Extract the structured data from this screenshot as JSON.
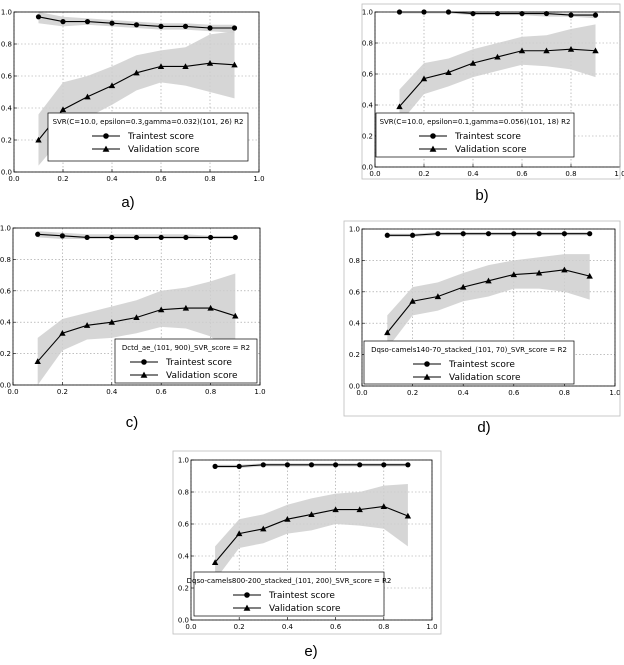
{
  "chart_data": [
    {
      "type": "line",
      "panel_label": "a)",
      "legend_title": "SVR(C=10.0, epsilon=0.3,gamma=0.032)(101, 26) R2",
      "legend_placement": "lower-right",
      "grid": true,
      "xlim": [
        0.0,
        1.0
      ],
      "ylim": [
        0.0,
        1.0
      ],
      "xticks": [
        "0.0",
        "0.2",
        "0.4",
        "0.6",
        "0.8",
        "1.0"
      ],
      "yticks": [
        "0.0",
        "0.2",
        "0.4",
        "0.6",
        "0.8",
        "1.0"
      ],
      "x": [
        0.1,
        0.2,
        0.3,
        0.4,
        0.5,
        0.6,
        0.7,
        0.8,
        0.9
      ],
      "series": [
        {
          "name": "Traintest score",
          "marker": "circle",
          "values": [
            0.97,
            0.94,
            0.94,
            0.93,
            0.92,
            0.91,
            0.91,
            0.9,
            0.9
          ],
          "band": [
            [
              0.93,
              1.0
            ],
            [
              0.91,
              0.97
            ],
            [
              0.92,
              0.96
            ],
            [
              0.91,
              0.95
            ],
            [
              0.9,
              0.94
            ],
            [
              0.89,
              0.93
            ],
            [
              0.89,
              0.93
            ],
            [
              0.88,
              0.92
            ],
            [
              0.87,
              0.92
            ]
          ]
        },
        {
          "name": "Validation score",
          "marker": "triangle",
          "values": [
            0.2,
            0.39,
            0.47,
            0.54,
            0.62,
            0.66,
            0.66,
            0.68,
            0.67
          ],
          "band": [
            [
              0.04,
              0.36
            ],
            [
              0.22,
              0.56
            ],
            [
              0.34,
              0.6
            ],
            [
              0.42,
              0.66
            ],
            [
              0.51,
              0.73
            ],
            [
              0.56,
              0.76
            ],
            [
              0.54,
              0.78
            ],
            [
              0.5,
              0.86
            ],
            [
              0.46,
              0.88
            ]
          ]
        }
      ]
    },
    {
      "type": "line",
      "panel_label": "b)",
      "legend_title": "SVR(C=10.0, epsilon=0.1,gamma=0.056)(101, 18) R2",
      "legend_placement": "lower-right",
      "grid": true,
      "xlim": [
        0.0,
        1.0
      ],
      "ylim": [
        0.0,
        1.0
      ],
      "xticks": [
        "0.0",
        "0.2",
        "0.4",
        "0.6",
        "0.8",
        "1.0"
      ],
      "yticks": [
        "0.0",
        "0.2",
        "0.4",
        "0.6",
        "0.8",
        "1.0"
      ],
      "x": [
        0.1,
        0.2,
        0.3,
        0.4,
        0.5,
        0.6,
        0.7,
        0.8,
        0.9
      ],
      "series": [
        {
          "name": "Traintest score",
          "marker": "circle",
          "values": [
            1.0,
            1.0,
            1.0,
            0.99,
            0.99,
            0.99,
            0.99,
            0.98,
            0.98
          ],
          "band": [
            [
              0.99,
              1.0
            ],
            [
              0.99,
              1.0
            ],
            [
              0.99,
              1.0
            ],
            [
              0.98,
              1.0
            ],
            [
              0.98,
              1.0
            ],
            [
              0.98,
              1.0
            ],
            [
              0.97,
              1.0
            ],
            [
              0.97,
              0.99
            ],
            [
              0.96,
              0.99
            ]
          ]
        },
        {
          "name": "Validation score",
          "marker": "triangle",
          "values": [
            0.39,
            0.57,
            0.61,
            0.67,
            0.71,
            0.75,
            0.75,
            0.76,
            0.75
          ],
          "band": [
            [
              0.28,
              0.5
            ],
            [
              0.47,
              0.67
            ],
            [
              0.52,
              0.7
            ],
            [
              0.58,
              0.76
            ],
            [
              0.62,
              0.8
            ],
            [
              0.66,
              0.84
            ],
            [
              0.65,
              0.85
            ],
            [
              0.63,
              0.89
            ],
            [
              0.58,
              0.92
            ]
          ]
        }
      ]
    },
    {
      "type": "line",
      "panel_label": "c)",
      "legend_title": "Dctd_ae_(101, 900)_SVR_score = R2",
      "legend_placement": "lower-right",
      "grid": true,
      "xlim": [
        0.0,
        1.0
      ],
      "ylim": [
        0.0,
        1.0
      ],
      "xticks": [
        "0.0",
        "0.2",
        "0.4",
        "0.6",
        "0.8",
        "1.0"
      ],
      "yticks": [
        "0.0",
        "0.2",
        "0.4",
        "0.6",
        "0.8",
        "1.0"
      ],
      "x": [
        0.1,
        0.2,
        0.3,
        0.4,
        0.5,
        0.6,
        0.7,
        0.8,
        0.9
      ],
      "series": [
        {
          "name": "Traintest score",
          "marker": "circle",
          "values": [
            0.96,
            0.95,
            0.94,
            0.94,
            0.94,
            0.94,
            0.94,
            0.94,
            0.94
          ],
          "band": [
            [
              0.94,
              0.98
            ],
            [
              0.93,
              0.97
            ],
            [
              0.93,
              0.96
            ],
            [
              0.93,
              0.96
            ],
            [
              0.93,
              0.96
            ],
            [
              0.93,
              0.96
            ],
            [
              0.93,
              0.96
            ],
            [
              0.93,
              0.95
            ],
            [
              0.93,
              0.95
            ]
          ]
        },
        {
          "name": "Validation score",
          "marker": "triangle",
          "values": [
            0.15,
            0.33,
            0.38,
            0.4,
            0.43,
            0.48,
            0.49,
            0.49,
            0.44
          ],
          "band": [
            [
              0.0,
              0.3
            ],
            [
              0.22,
              0.42
            ],
            [
              0.29,
              0.46
            ],
            [
              0.3,
              0.5
            ],
            [
              0.33,
              0.54
            ],
            [
              0.37,
              0.6
            ],
            [
              0.36,
              0.62
            ],
            [
              0.31,
              0.66
            ],
            [
              0.17,
              0.71
            ]
          ]
        }
      ]
    },
    {
      "type": "line",
      "panel_label": "d)",
      "legend_title": "Dqso-camels140-70_stacked_(101, 70)_SVR_score = R2",
      "legend_placement": "lower-right",
      "grid": true,
      "xlim": [
        0.0,
        1.0
      ],
      "ylim": [
        0.0,
        1.0
      ],
      "xticks": [
        "0.0",
        "0.2",
        "0.4",
        "0.6",
        "0.8",
        "1.0"
      ],
      "yticks": [
        "0.0",
        "0.2",
        "0.4",
        "0.6",
        "0.8",
        "1.0"
      ],
      "x": [
        0.1,
        0.2,
        0.3,
        0.4,
        0.5,
        0.6,
        0.7,
        0.8,
        0.9
      ],
      "series": [
        {
          "name": "Traintest score",
          "marker": "circle",
          "values": [
            0.96,
            0.96,
            0.97,
            0.97,
            0.97,
            0.97,
            0.97,
            0.97,
            0.97
          ],
          "band": [
            [
              0.95,
              0.97
            ],
            [
              0.95,
              0.97
            ],
            [
              0.96,
              0.98
            ],
            [
              0.96,
              0.98
            ],
            [
              0.96,
              0.98
            ],
            [
              0.96,
              0.98
            ],
            [
              0.96,
              0.98
            ],
            [
              0.96,
              0.98
            ],
            [
              0.96,
              0.98
            ]
          ]
        },
        {
          "name": "Validation score",
          "marker": "triangle",
          "values": [
            0.34,
            0.54,
            0.57,
            0.63,
            0.67,
            0.71,
            0.72,
            0.74,
            0.7
          ],
          "band": [
            [
              0.24,
              0.45
            ],
            [
              0.45,
              0.63
            ],
            [
              0.48,
              0.66
            ],
            [
              0.54,
              0.72
            ],
            [
              0.57,
              0.77
            ],
            [
              0.62,
              0.8
            ],
            [
              0.62,
              0.82
            ],
            [
              0.6,
              0.84
            ],
            [
              0.55,
              0.84
            ]
          ]
        }
      ]
    },
    {
      "type": "line",
      "panel_label": "e)",
      "legend_title": "Dqso-camels800-200_stacked_(101, 200)_SVR_score = R2",
      "legend_placement": "lower-right",
      "grid": true,
      "xlim": [
        0.0,
        1.0
      ],
      "ylim": [
        0.0,
        1.0
      ],
      "xticks": [
        "0.0",
        "0.2",
        "0.4",
        "0.6",
        "0.8",
        "1.0"
      ],
      "yticks": [
        "0.0",
        "0.2",
        "0.4",
        "0.6",
        "0.8",
        "1.0"
      ],
      "x": [
        0.1,
        0.2,
        0.3,
        0.4,
        0.5,
        0.6,
        0.7,
        0.8,
        0.9
      ],
      "series": [
        {
          "name": "Traintest score",
          "marker": "circle",
          "values": [
            0.96,
            0.96,
            0.97,
            0.97,
            0.97,
            0.97,
            0.97,
            0.97,
            0.97
          ],
          "band": [
            [
              0.95,
              0.97
            ],
            [
              0.95,
              0.97
            ],
            [
              0.96,
              0.98
            ],
            [
              0.96,
              0.98
            ],
            [
              0.96,
              0.98
            ],
            [
              0.96,
              0.98
            ],
            [
              0.96,
              0.98
            ],
            [
              0.96,
              0.98
            ],
            [
              0.96,
              0.98
            ]
          ]
        },
        {
          "name": "Validation score",
          "marker": "triangle",
          "values": [
            0.36,
            0.54,
            0.57,
            0.63,
            0.66,
            0.69,
            0.69,
            0.71,
            0.65
          ],
          "band": [
            [
              0.25,
              0.46
            ],
            [
              0.45,
              0.63
            ],
            [
              0.48,
              0.66
            ],
            [
              0.54,
              0.72
            ],
            [
              0.56,
              0.76
            ],
            [
              0.6,
              0.79
            ],
            [
              0.59,
              0.8
            ],
            [
              0.57,
              0.84
            ],
            [
              0.46,
              0.85
            ]
          ]
        }
      ]
    }
  ]
}
